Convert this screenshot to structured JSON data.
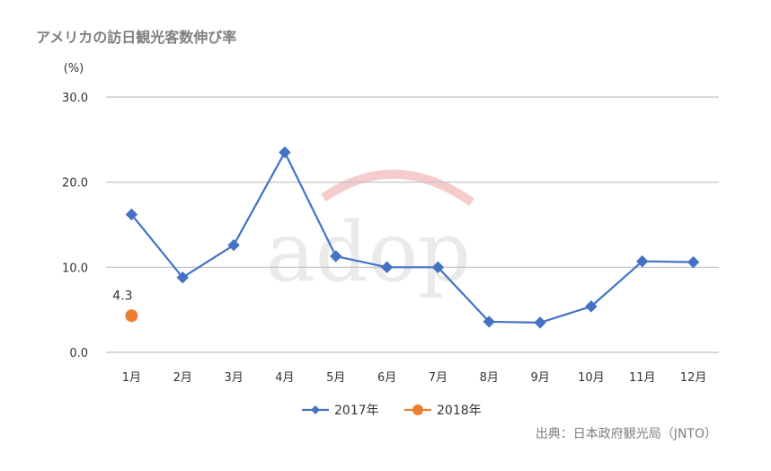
{
  "title": "アメリカの訪日観光客数伸び率",
  "source": "出典：日本政府観光局（JNTO）",
  "watermark_text": "adop",
  "colors": {
    "series_2017": "#4472c4",
    "series_2018": "#ed7d31",
    "grid": "#bfbfbf",
    "watermark_arc": "#f4cccc"
  },
  "chart_data": {
    "type": "line",
    "ylabel": "(%)",
    "ylim": [
      0,
      30
    ],
    "yticks": [
      "0.0",
      "10.0",
      "20.0",
      "30.0"
    ],
    "ytick_values": [
      0,
      10,
      20,
      30
    ],
    "categories": [
      "1月",
      "2月",
      "3月",
      "4月",
      "5月",
      "6月",
      "7月",
      "8月",
      "9月",
      "10月",
      "11月",
      "12月"
    ],
    "grid": true,
    "legend_position": "bottom",
    "series": [
      {
        "name": "2017年",
        "marker": "diamond",
        "values": [
          16.2,
          8.8,
          12.6,
          23.5,
          11.3,
          10.0,
          10.0,
          3.6,
          3.5,
          5.4,
          10.7,
          10.6
        ]
      },
      {
        "name": "2018年",
        "marker": "circle",
        "values": [
          4.3,
          null,
          null,
          null,
          null,
          null,
          null,
          null,
          null,
          null,
          null,
          null
        ],
        "data_labels": [
          "4.3"
        ]
      }
    ]
  }
}
